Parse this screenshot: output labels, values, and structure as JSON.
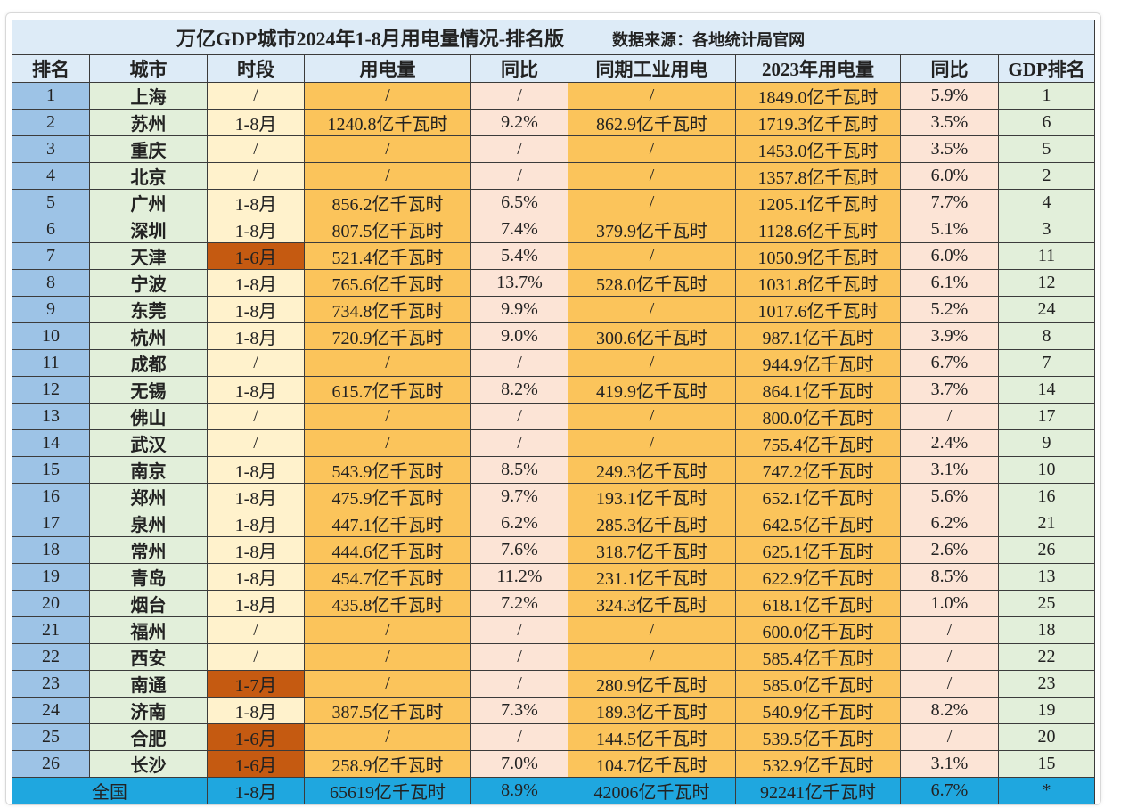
{
  "title": "万亿GDP城市2024年1-8月用电量情况-排名版",
  "source": "数据来源：各地统计局官网",
  "table": {
    "columns": [
      "排名",
      "城市",
      "时段",
      "用电量",
      "同比",
      "同期工业用电",
      "2023年用电量",
      "同比",
      "GDP排名"
    ],
    "rows": [
      {
        "cells": [
          "1",
          "上海",
          "/",
          "/",
          "/",
          "/",
          "1849.0亿千瓦时",
          "5.9%",
          "1"
        ],
        "highlight": false
      },
      {
        "cells": [
          "2",
          "苏州",
          "1-8月",
          "1240.8亿千瓦时",
          "9.2%",
          "862.9亿千瓦时",
          "1719.3亿千瓦时",
          "3.5%",
          "6"
        ],
        "highlight": false
      },
      {
        "cells": [
          "3",
          "重庆",
          "/",
          "/",
          "/",
          "/",
          "1453.0亿千瓦时",
          "3.5%",
          "5"
        ],
        "highlight": false
      },
      {
        "cells": [
          "4",
          "北京",
          "/",
          "/",
          "/",
          "/",
          "1357.8亿千瓦时",
          "6.0%",
          "2"
        ],
        "highlight": false
      },
      {
        "cells": [
          "5",
          "广州",
          "1-8月",
          "856.2亿千瓦时",
          "6.5%",
          "/",
          "1205.1亿千瓦时",
          "7.7%",
          "4"
        ],
        "highlight": false
      },
      {
        "cells": [
          "6",
          "深圳",
          "1-8月",
          "807.5亿千瓦时",
          "7.4%",
          "379.9亿千瓦时",
          "1128.6亿千瓦时",
          "5.1%",
          "3"
        ],
        "highlight": false
      },
      {
        "cells": [
          "7",
          "天津",
          "1-6月",
          "521.4亿千瓦时",
          "5.4%",
          "/",
          "1050.9亿千瓦时",
          "6.0%",
          "11"
        ],
        "highlight": true
      },
      {
        "cells": [
          "8",
          "宁波",
          "1-8月",
          "765.6亿千瓦时",
          "13.7%",
          "528.0亿千瓦时",
          "1031.8亿千瓦时",
          "6.1%",
          "12"
        ],
        "highlight": false
      },
      {
        "cells": [
          "9",
          "东莞",
          "1-8月",
          "734.8亿千瓦时",
          "9.9%",
          "/",
          "1017.6亿千瓦时",
          "5.2%",
          "24"
        ],
        "highlight": false
      },
      {
        "cells": [
          "10",
          "杭州",
          "1-8月",
          "720.9亿千瓦时",
          "9.0%",
          "300.6亿千瓦时",
          "987.1亿千瓦时",
          "3.9%",
          "8"
        ],
        "highlight": false
      },
      {
        "cells": [
          "11",
          "成都",
          "/",
          "/",
          "/",
          "/",
          "944.9亿千瓦时",
          "6.7%",
          "7"
        ],
        "highlight": false
      },
      {
        "cells": [
          "12",
          "无锡",
          "1-8月",
          "615.7亿千瓦时",
          "8.2%",
          "419.9亿千瓦时",
          "864.1亿千瓦时",
          "3.7%",
          "14"
        ],
        "highlight": false
      },
      {
        "cells": [
          "13",
          "佛山",
          "/",
          "/",
          "/",
          "/",
          "800.0亿千瓦时",
          "/",
          "17"
        ],
        "highlight": false
      },
      {
        "cells": [
          "14",
          "武汉",
          "/",
          "/",
          "/",
          "/",
          "755.4亿千瓦时",
          "2.4%",
          "9"
        ],
        "highlight": false
      },
      {
        "cells": [
          "15",
          "南京",
          "1-8月",
          "543.9亿千瓦时",
          "8.5%",
          "249.3亿千瓦时",
          "747.2亿千瓦时",
          "3.1%",
          "10"
        ],
        "highlight": false
      },
      {
        "cells": [
          "16",
          "郑州",
          "1-8月",
          "475.9亿千瓦时",
          "9.7%",
          "193.1亿千瓦时",
          "652.1亿千瓦时",
          "5.6%",
          "16"
        ],
        "highlight": false
      },
      {
        "cells": [
          "17",
          "泉州",
          "1-8月",
          "447.1亿千瓦时",
          "6.2%",
          "285.3亿千瓦时",
          "642.5亿千瓦时",
          "6.2%",
          "21"
        ],
        "highlight": false
      },
      {
        "cells": [
          "18",
          "常州",
          "1-8月",
          "444.6亿千瓦时",
          "7.6%",
          "318.7亿千瓦时",
          "625.1亿千瓦时",
          "2.6%",
          "26"
        ],
        "highlight": false
      },
      {
        "cells": [
          "19",
          "青岛",
          "1-8月",
          "454.7亿千瓦时",
          "11.2%",
          "231.1亿千瓦时",
          "622.9亿千瓦时",
          "8.5%",
          "13"
        ],
        "highlight": false
      },
      {
        "cells": [
          "20",
          "烟台",
          "1-8月",
          "435.8亿千瓦时",
          "7.2%",
          "324.3亿千瓦时",
          "618.1亿千瓦时",
          "1.0%",
          "25"
        ],
        "highlight": false
      },
      {
        "cells": [
          "21",
          "福州",
          "/",
          "/",
          "/",
          "/",
          "600.0亿千瓦时",
          "/",
          "18"
        ],
        "highlight": false
      },
      {
        "cells": [
          "22",
          "西安",
          "/",
          "/",
          "/",
          "/",
          "585.4亿千瓦时",
          "/",
          "22"
        ],
        "highlight": false
      },
      {
        "cells": [
          "23",
          "南通",
          "1-7月",
          "/",
          "/",
          "280.9亿千瓦时",
          "585.0亿千瓦时",
          "/",
          "23"
        ],
        "highlight": true
      },
      {
        "cells": [
          "24",
          "济南",
          "1-8月",
          "387.5亿千瓦时",
          "7.3%",
          "189.3亿千瓦时",
          "540.9亿千瓦时",
          "8.2%",
          "19"
        ],
        "highlight": false
      },
      {
        "cells": [
          "25",
          "合肥",
          "1-6月",
          "/",
          "/",
          "144.5亿千瓦时",
          "539.5亿千瓦时",
          "/",
          "20"
        ],
        "highlight": true
      },
      {
        "cells": [
          "26",
          "长沙",
          "1-6月",
          "258.9亿千瓦时",
          "7.0%",
          "104.7亿千瓦时",
          "532.9亿千瓦时",
          "3.1%",
          "15"
        ],
        "highlight": true
      }
    ],
    "total": {
      "cells": [
        "全国",
        "1-8月",
        "65619亿千瓦时",
        "8.9%",
        "42006亿千瓦时",
        "92241亿千瓦时",
        "6.7%",
        "*"
      ]
    }
  }
}
